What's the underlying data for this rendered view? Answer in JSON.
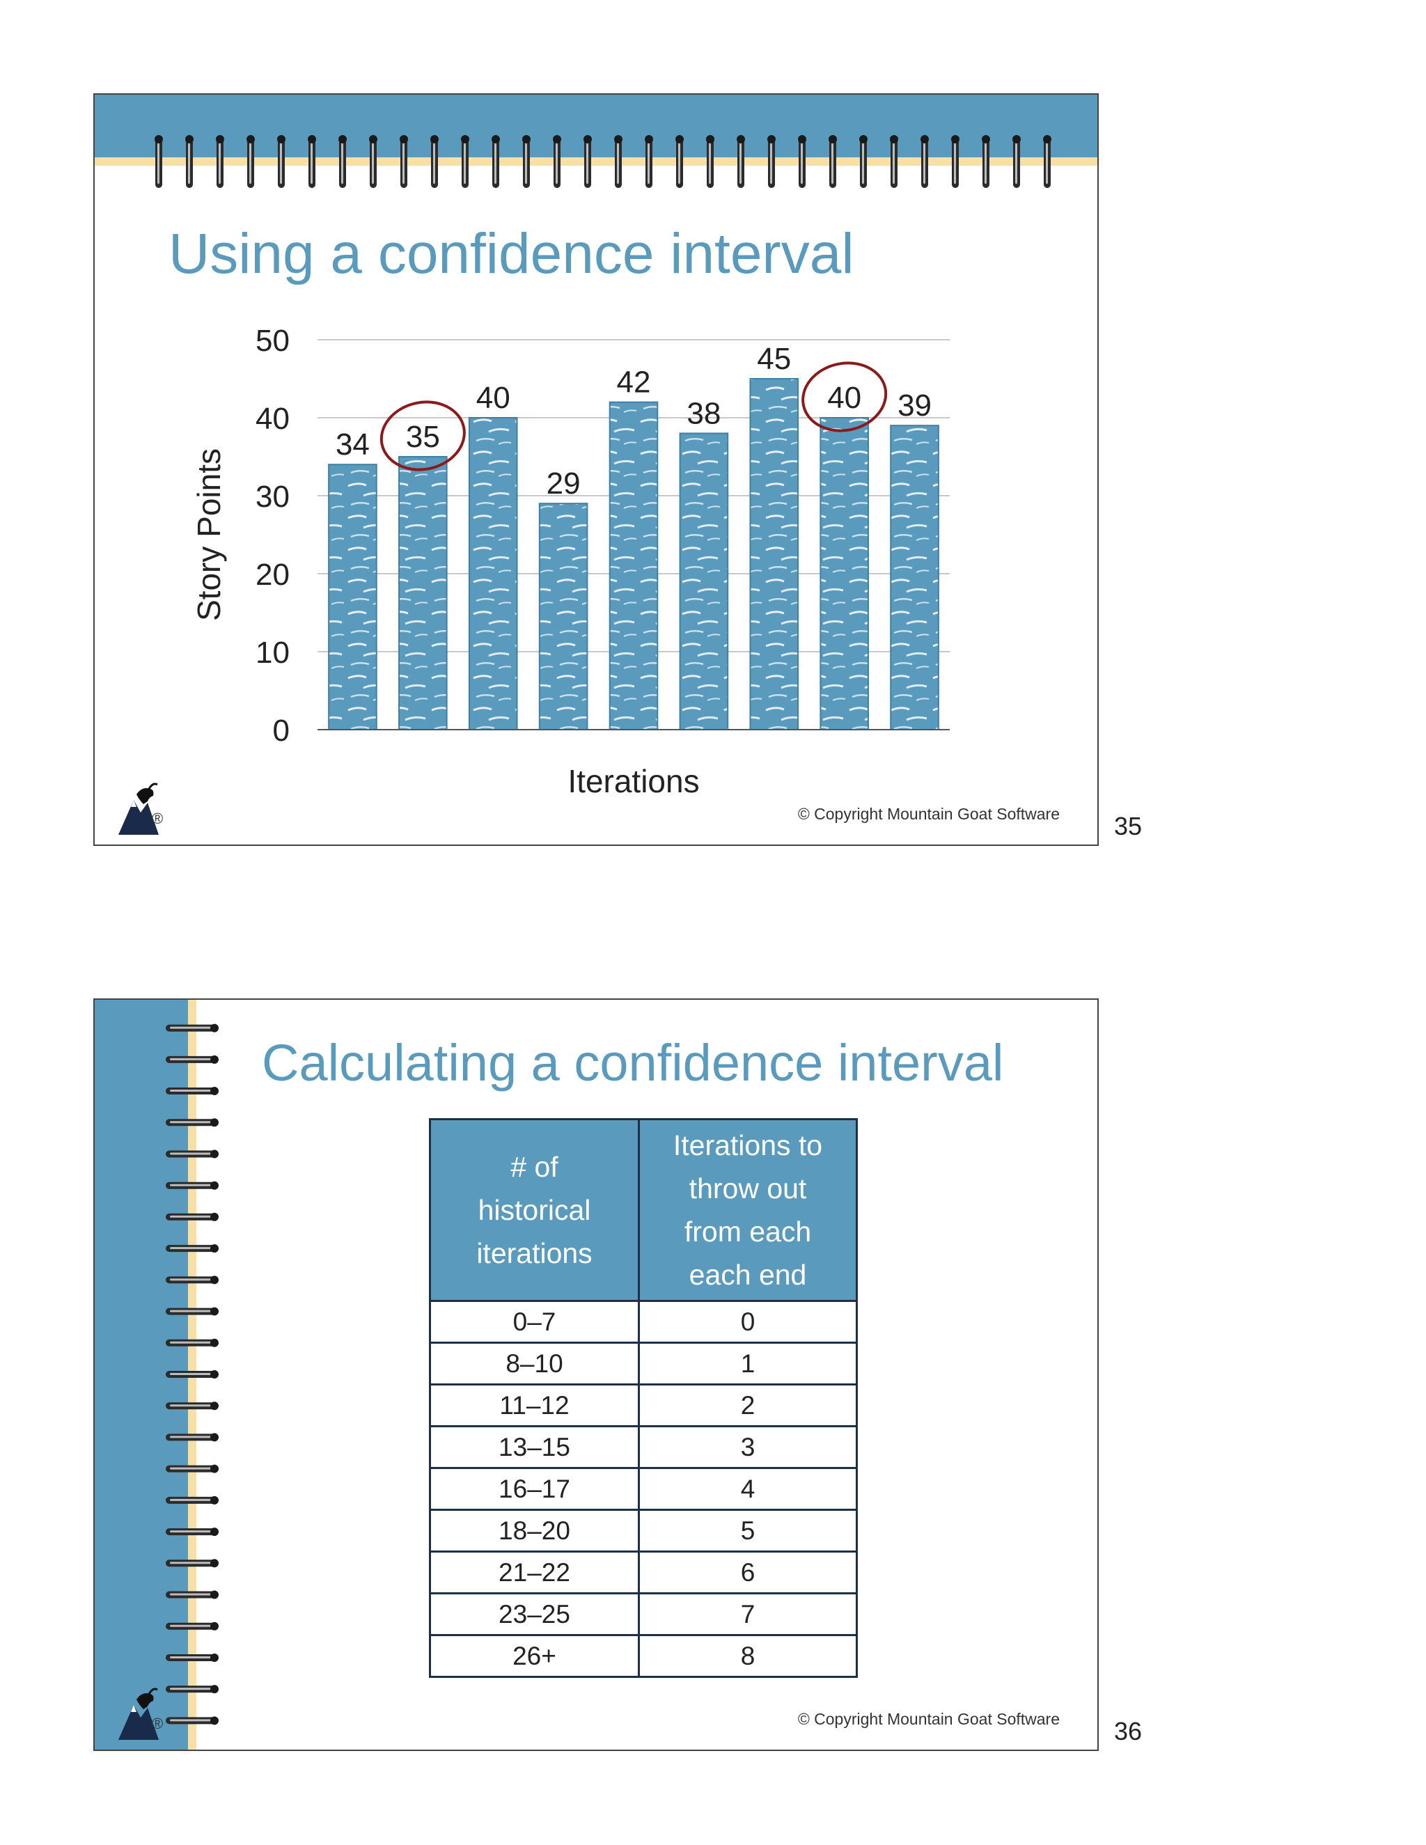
{
  "slides": [
    {
      "title": "Using a confidence interval",
      "copyright": "© Copyright Mountain Goat Software",
      "page_number": "35",
      "logo_mark": "®"
    },
    {
      "title": "Calculating a confidence interval",
      "copyright": "© Copyright Mountain Goat Software",
      "page_number": "36",
      "logo_mark": "®"
    }
  ],
  "chart_data": {
    "type": "bar",
    "title": "",
    "xlabel": "Iterations",
    "ylabel": "Story Points",
    "ylim": [
      0,
      50
    ],
    "yticks": [
      0,
      10,
      20,
      30,
      40,
      50
    ],
    "grid": true,
    "values": [
      34,
      35,
      40,
      29,
      42,
      38,
      45,
      40,
      39
    ],
    "highlighted_indices": [
      1,
      7
    ],
    "colors": {
      "bar": "#5a9bbd",
      "highlight_circle": "#8b1a1a",
      "gridline": "#c8c8c8"
    }
  },
  "table": {
    "headers": [
      "# of historical iterations",
      "Iterations to throw out from each each end"
    ],
    "header_lines": [
      [
        "# of",
        "historical",
        "iterations"
      ],
      [
        "Iterations to",
        "throw out",
        "from each",
        "each end"
      ]
    ],
    "rows": [
      [
        "0–7",
        "0"
      ],
      [
        "8–10",
        "1"
      ],
      [
        "11–12",
        "2"
      ],
      [
        "13–15",
        "3"
      ],
      [
        "16–17",
        "4"
      ],
      [
        "18–20",
        "5"
      ],
      [
        "21–22",
        "6"
      ],
      [
        "23–25",
        "7"
      ],
      [
        "26+",
        "8"
      ]
    ]
  },
  "colors": {
    "accent": "#5a9bbd",
    "stripe": "#f7dfa6",
    "table_border": "#1e2f4a"
  }
}
